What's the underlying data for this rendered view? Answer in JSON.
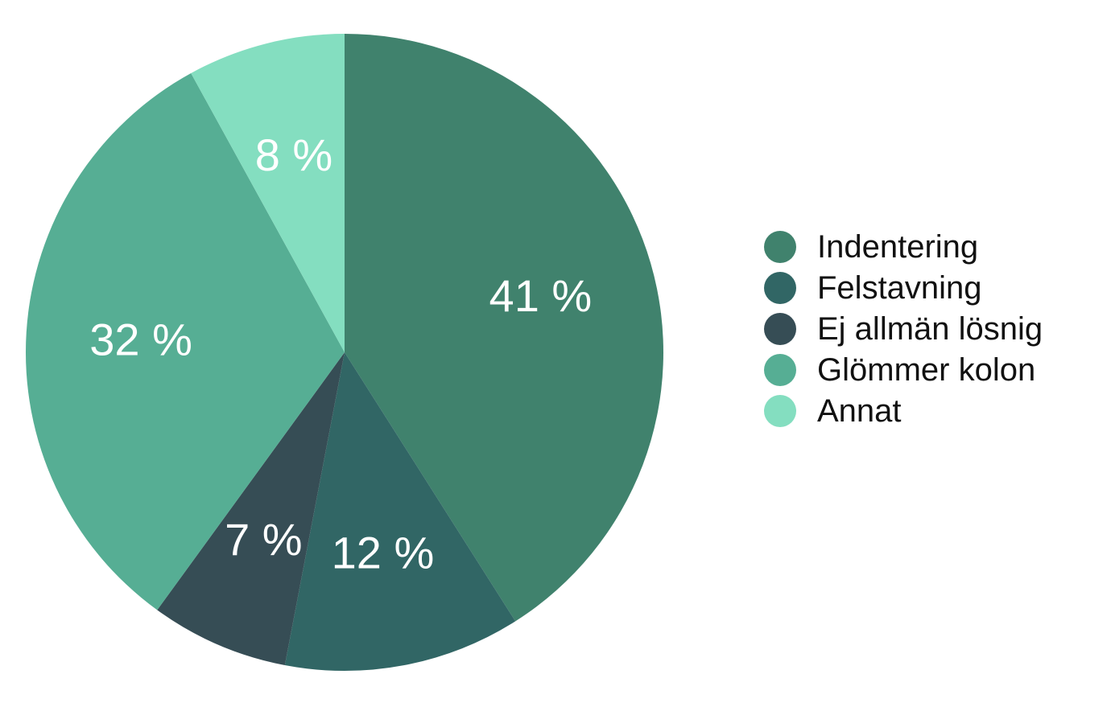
{
  "chart_data": {
    "type": "pie",
    "title": "",
    "legend_position": "right",
    "slices": [
      {
        "label": "Indentering",
        "value": 41,
        "display": "41 %",
        "color": "#40826D"
      },
      {
        "label": "Felstavning",
        "value": 12,
        "display": "12 %",
        "color": "#316665"
      },
      {
        "label": "Ej allmän lösnig",
        "value": 7,
        "display": "7 %",
        "color": "#364D55"
      },
      {
        "label": "Glömmer kolon",
        "value": 32,
        "display": "32 %",
        "color": "#56AE94"
      },
      {
        "label": "Annat",
        "value": 8,
        "display": "8 %",
        "color": "#84DEC0"
      }
    ]
  }
}
